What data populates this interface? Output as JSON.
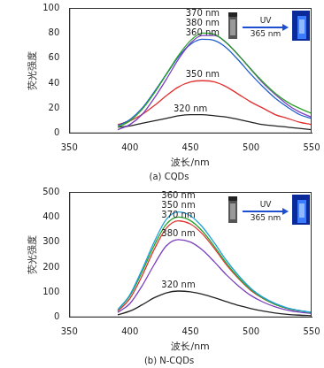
{
  "chart_data": [
    {
      "type": "line",
      "title": "(a) CQDs",
      "x_label": "波长/nm",
      "y_label": "荧光强度",
      "x": [
        390,
        400,
        410,
        420,
        430,
        440,
        450,
        460,
        470,
        480,
        490,
        500,
        510,
        520,
        530,
        540,
        550
      ],
      "series": [
        {
          "name": "370 nm",
          "color": "#2ca02c",
          "values": [
            5,
            10,
            19,
            32,
            47,
            62,
            74,
            80,
            79,
            72,
            62,
            51,
            41,
            32,
            25,
            20,
            16
          ]
        },
        {
          "name": "380 nm",
          "color": "#7b3fbf",
          "values": [
            3,
            7,
            15,
            28,
            43,
            59,
            72,
            78,
            78,
            72,
            62,
            51,
            40,
            31,
            23,
            17,
            13
          ]
        },
        {
          "name": "360 nm",
          "color": "#1f5fd0",
          "values": [
            6,
            11,
            20,
            33,
            47,
            61,
            71,
            75,
            74,
            68,
            58,
            47,
            37,
            28,
            21,
            15,
            12
          ]
        },
        {
          "name": "350 nm",
          "color": "#e03030",
          "values": [
            7,
            10,
            15,
            22,
            30,
            37,
            41,
            42,
            41,
            37,
            31,
            25,
            20,
            15,
            12,
            9,
            7
          ]
        },
        {
          "name": "320 nm",
          "color": "#222222",
          "values": [
            5,
            6,
            8,
            10,
            12,
            14,
            15,
            15,
            14,
            13,
            11,
            9,
            7,
            6,
            5,
            4,
            3
          ]
        }
      ],
      "xlim": [
        350,
        550
      ],
      "xticks": [
        350,
        400,
        450,
        500,
        550
      ],
      "ylim": [
        0,
        100
      ],
      "yticks": [
        0,
        20,
        40,
        60,
        80,
        100
      ],
      "grid": false,
      "marker": "none",
      "annotations": [
        "UV",
        "365 nm"
      ]
    },
    {
      "type": "line",
      "title": "(b) N-CQDs",
      "x_label": "波长/nm",
      "y_label": "荧光强度",
      "x": [
        390,
        400,
        410,
        420,
        430,
        440,
        450,
        460,
        470,
        480,
        490,
        500,
        510,
        520,
        530,
        540,
        550
      ],
      "series": [
        {
          "name": "360 nm",
          "color": "#1fa0d8",
          "values": [
            30,
            90,
            190,
            300,
            390,
            420,
            405,
            360,
            295,
            225,
            165,
            115,
            80,
            55,
            38,
            27,
            20
          ]
        },
        {
          "name": "350 nm",
          "color": "#2ca02c",
          "values": [
            29,
            86,
            181,
            286,
            371,
            400,
            386,
            343,
            281,
            214,
            157,
            110,
            76,
            52,
            36,
            26,
            19
          ]
        },
        {
          "name": "370 nm",
          "color": "#e03030",
          "values": [
            25,
            75,
            165,
            270,
            355,
            385,
            372,
            332,
            273,
            208,
            153,
            107,
            75,
            52,
            36,
            26,
            19
          ]
        },
        {
          "name": "380 nm",
          "color": "#7b3fbf",
          "values": [
            20,
            55,
            125,
            210,
            285,
            310,
            300,
            268,
            220,
            168,
            124,
            87,
            61,
            42,
            29,
            21,
            16
          ]
        },
        {
          "name": "320 nm",
          "color": "#222222",
          "values": [
            10,
            25,
            50,
            78,
            98,
            105,
            102,
            92,
            78,
            62,
            47,
            35,
            25,
            17,
            12,
            9,
            7
          ]
        }
      ],
      "xlim": [
        350,
        550
      ],
      "xticks": [
        350,
        400,
        450,
        500,
        550
      ],
      "ylim": [
        0,
        500
      ],
      "yticks": [
        0,
        100,
        200,
        300,
        400,
        500
      ],
      "grid": false,
      "marker": "none",
      "annotations": [
        "UV",
        "365 nm"
      ]
    }
  ]
}
